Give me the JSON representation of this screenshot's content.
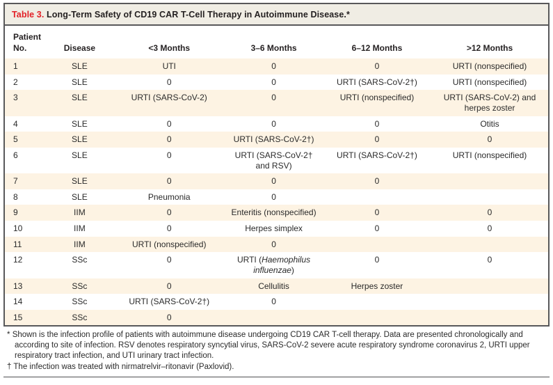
{
  "title": {
    "label": "Table 3.",
    "text": "Long-Term Safety of CD19 CAR T-Cell Therapy in Autoimmune Disease.*"
  },
  "colors": {
    "accent_red": "#e21f26",
    "title_bar_bg": "#f0ede4",
    "row_stripe": "#fdf3e3",
    "border": "#58585a"
  },
  "table": {
    "columns": [
      "Patient\nNo.",
      "Disease",
      "<3 Months",
      "3–6 Months",
      "6–12 Months",
      ">12 Months"
    ],
    "italic_phrase": "Haemophilus influenzae",
    "rows": [
      {
        "cells": [
          "1",
          "SLE",
          "UTI",
          "0",
          "0",
          "URTI (nonspecified)"
        ]
      },
      {
        "cells": [
          "2",
          "SLE",
          "0",
          "0",
          "URTI (SARS-CoV-2†)",
          "URTI (nonspecified)"
        ]
      },
      {
        "cells": [
          "3",
          "SLE",
          "URTI (SARS-CoV-2)",
          "0",
          "URTI (nonspecified)",
          "URTI (SARS-CoV-2) and herpes zoster"
        ]
      },
      {
        "cells": [
          "4",
          "SLE",
          "0",
          "0",
          "0",
          "Otitis"
        ]
      },
      {
        "cells": [
          "5",
          "SLE",
          "0",
          "URTI (SARS-CoV-2†)",
          "0",
          "0"
        ]
      },
      {
        "cells": [
          "6",
          "SLE",
          "0",
          "URTI (SARS-CoV-2† and RSV)",
          "URTI (SARS-CoV-2†)",
          "URTI (nonspecified)"
        ]
      },
      {
        "cells": [
          "7",
          "SLE",
          "0",
          "0",
          "0",
          ""
        ]
      },
      {
        "cells": [
          "8",
          "SLE",
          "Pneumonia",
          "0",
          "",
          ""
        ]
      },
      {
        "cells": [
          "9",
          "IIM",
          "0",
          "Enteritis (nonspecified)",
          "0",
          "0"
        ]
      },
      {
        "cells": [
          "10",
          "IIM",
          "0",
          "Herpes simplex",
          "0",
          "0"
        ]
      },
      {
        "cells": [
          "11",
          "IIM",
          "URTI (nonspecified)",
          "0",
          "",
          ""
        ]
      },
      {
        "cells": [
          "12",
          "SSc",
          "0",
          "URTI (Haemophilus influenzae)",
          "0",
          "0"
        ]
      },
      {
        "cells": [
          "13",
          "SSc",
          "0",
          "Cellulitis",
          "Herpes zoster",
          ""
        ]
      },
      {
        "cells": [
          "14",
          "SSc",
          "URTI (SARS-CoV-2†)",
          "0",
          "",
          ""
        ]
      },
      {
        "cells": [
          "15",
          "SSc",
          "0",
          "",
          "",
          ""
        ]
      }
    ]
  },
  "footnotes": [
    {
      "marker": "*",
      "text": "Shown is the infection profile of patients with autoimmune disease undergoing CD19 CAR T-cell therapy. Data are presented chronologically and according to site of infection. RSV denotes respiratory syncytial virus, SARS-CoV-2 severe acute respiratory syndrome coronavirus 2, URTI upper respiratory tract infection, and UTI urinary tract infection."
    },
    {
      "marker": "†",
      "text": "The infection was treated with nirmatrelvir–ritonavir (Paxlovid)."
    }
  ]
}
